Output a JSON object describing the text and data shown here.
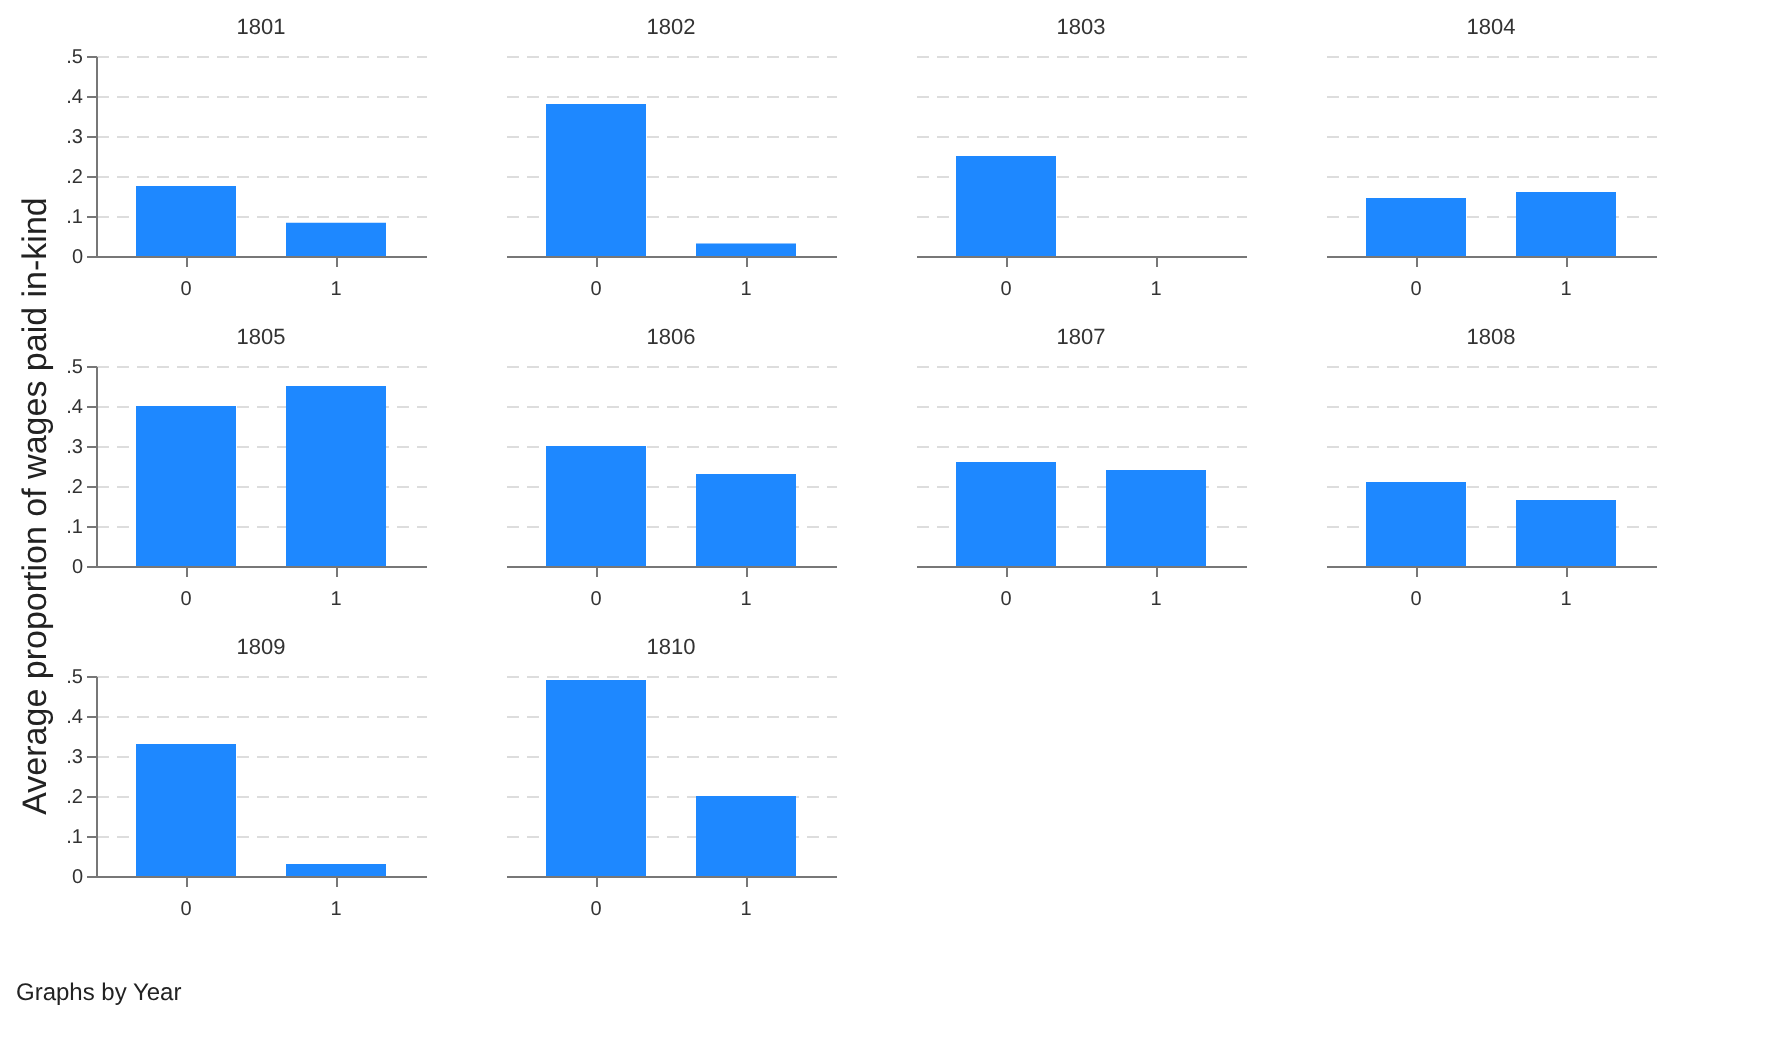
{
  "chart_data": [
    {
      "type": "bar",
      "title": "1801",
      "ylabel": "Average proportion of wages paid in-kind",
      "annotations": [
        "Graphs by Year"
      ],
      "categories": [
        "0",
        "1"
      ],
      "values": [
        0.175,
        0.083
      ],
      "color": "#1e88ff",
      "ylim": [
        0,
        0.5
      ],
      "yticks": [
        0,
        {
          "value": 0.1,
          "label": ".1"
        },
        {
          "value": 0.2,
          "label": ".2"
        },
        {
          "value": 0.3,
          "label": ".3"
        },
        {
          "value": 0.4,
          "label": ".4"
        },
        {
          "value": 0.5,
          "label": ".5"
        }
      ],
      "grid": "y"
    },
    {
      "type": "bar",
      "title": "1802",
      "categories": [
        "0",
        "1"
      ],
      "values": [
        0.38,
        0.031
      ],
      "color": "#1e88ff",
      "ylim": [
        0,
        0.5
      ],
      "yticks": [
        0,
        0.1,
        0.2,
        0.3,
        0.4,
        0.5
      ],
      "grid": "y",
      "tick_labels": "x"
    },
    {
      "type": "bar",
      "title": "1803",
      "categories": [
        "0",
        "1"
      ],
      "values": [
        0.25,
        null
      ],
      "color": "#1e88ff",
      "ylim": [
        0,
        0.5
      ],
      "yticks": [
        0,
        0.1,
        0.2,
        0.3,
        0.4,
        0.5
      ],
      "grid": "y",
      "tick_labels": "x"
    },
    {
      "type": "bar",
      "title": "1804",
      "categories": [
        "0",
        "1"
      ],
      "values": [
        0.145,
        0.16
      ],
      "color": "#1e88ff",
      "ylim": [
        0,
        0.5
      ],
      "yticks": [
        0,
        0.1,
        0.2,
        0.3,
        0.4,
        0.5
      ],
      "grid": "y",
      "tick_labels": "x"
    },
    {
      "type": "bar",
      "title": "1805",
      "categories": [
        "0",
        "1"
      ],
      "values": [
        0.4,
        0.45
      ],
      "color": "#1e88ff",
      "ylim": [
        0,
        0.5
      ],
      "yticks": [
        0,
        {
          "value": 0.1,
          "label": ".1"
        },
        {
          "value": 0.2,
          "label": ".2"
        },
        {
          "value": 0.3,
          "label": ".3"
        },
        {
          "value": 0.4,
          "label": ".4"
        },
        {
          "value": 0.5,
          "label": ".5"
        }
      ],
      "grid": "y"
    },
    {
      "type": "bar",
      "title": "1806",
      "categories": [
        "0",
        "1"
      ],
      "values": [
        0.3,
        0.23
      ],
      "color": "#1e88ff",
      "ylim": [
        0,
        0.5
      ],
      "yticks": [
        0,
        0.1,
        0.2,
        0.3,
        0.4,
        0.5
      ],
      "grid": "y",
      "tick_labels": "x"
    },
    {
      "type": "bar",
      "title": "1807",
      "categories": [
        "0",
        "1"
      ],
      "values": [
        0.26,
        0.24
      ],
      "color": "#1e88ff",
      "ylim": [
        0,
        0.5
      ],
      "yticks": [
        0,
        0.1,
        0.2,
        0.3,
        0.4,
        0.5
      ],
      "grid": "y",
      "tick_labels": "x"
    },
    {
      "type": "bar",
      "title": "1808",
      "categories": [
        "0",
        "1"
      ],
      "values": [
        0.21,
        0.165
      ],
      "color": "#1e88ff",
      "ylim": [
        0,
        0.5
      ],
      "yticks": [
        0,
        0.1,
        0.2,
        0.3,
        0.4,
        0.5
      ],
      "grid": "y",
      "tick_labels": "x"
    },
    {
      "type": "bar",
      "title": "1809",
      "categories": [
        "0",
        "1"
      ],
      "values": [
        0.33,
        0.03
      ],
      "color": "#1e88ff",
      "ylim": [
        0,
        0.5
      ],
      "yticks": [
        0,
        {
          "value": 0.1,
          "label": ".1"
        },
        {
          "value": 0.2,
          "label": ".2"
        },
        {
          "value": 0.3,
          "label": ".3"
        },
        {
          "value": 0.4,
          "label": ".4"
        },
        {
          "value": 0.5,
          "label": ".5"
        }
      ],
      "grid": "y"
    },
    {
      "type": "bar",
      "title": "1810",
      "categories": [
        "0",
        "1"
      ],
      "values": [
        0.49,
        0.2
      ],
      "color": "#1e88ff",
      "ylim": [
        0,
        0.5
      ],
      "yticks": [
        0,
        0.1,
        0.2,
        0.3,
        0.4,
        0.5
      ],
      "grid": "y",
      "tick_labels": "x"
    }
  ]
}
